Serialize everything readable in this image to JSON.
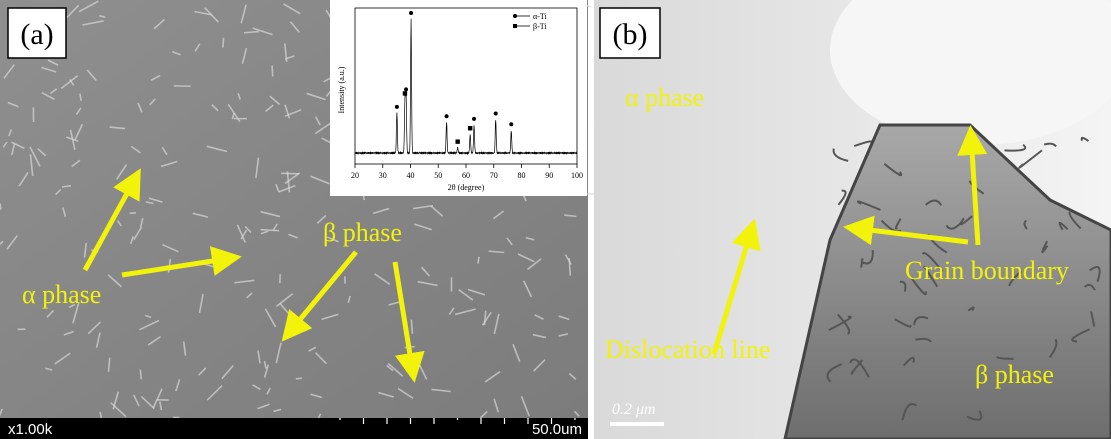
{
  "panels": [
    {
      "label": "(a)",
      "annotations": [
        "α phase",
        "β phase"
      ],
      "magnification": "x1.00k",
      "scale": "50.0um"
    },
    {
      "label": "(b)",
      "annotations": [
        "α phase",
        "Dislocation line",
        "Grain boundary",
        "β phase"
      ],
      "scale": "0.2 μm"
    }
  ],
  "chart_data": {
    "type": "line",
    "xlabel": "2θ (degree)",
    "ylabel": "Intensity (a.u.)",
    "xlim": [
      20,
      100
    ],
    "xticks": [
      20,
      30,
      40,
      50,
      60,
      70,
      80,
      90,
      100
    ],
    "ylim": [
      0,
      100
    ],
    "series": [
      {
        "name": "α-Ti",
        "marker": "circle",
        "color": "#000000",
        "x": [
          35.1,
          38.4,
          40.2,
          53.0,
          62.9,
          70.7,
          76.3
        ],
        "values": [
          30,
          43,
          100,
          23,
          21,
          25,
          17
        ]
      },
      {
        "name": "β-Ti",
        "marker": "square",
        "color": "#000000",
        "x": [
          38.0,
          57.0,
          61.5
        ],
        "values": [
          40,
          4,
          14
        ]
      }
    ]
  }
}
